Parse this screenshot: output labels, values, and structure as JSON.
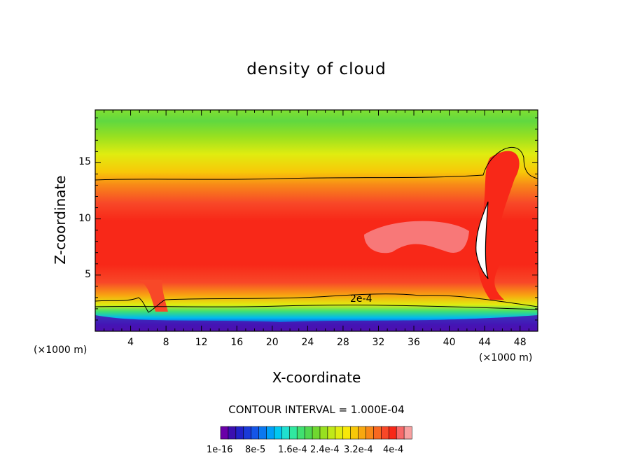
{
  "chart_data": {
    "type": "heatmap",
    "title": "density of cloud",
    "xlabel": "X-coordinate",
    "ylabel": "Z-coordinate",
    "x_unit": "(×1000 m)",
    "xlim": [
      0,
      50
    ],
    "ylim": [
      0,
      19.7
    ],
    "x_ticks": [
      "4",
      "8",
      "12",
      "16",
      "20",
      "24",
      "28",
      "32",
      "36",
      "40",
      "44",
      "48"
    ],
    "y_ticks": [
      "5",
      "10",
      "15"
    ],
    "contour_interval_label": "CONTOUR INTERVAL = 1.000E-04",
    "contour_label": "2e-4",
    "colorbar": {
      "labels": [
        "1e-16",
        "8e-5",
        "1.6e-4",
        "2.4e-4",
        "3.2e-4",
        "4e-4"
      ],
      "min": 0,
      "max": 0.0004,
      "colors": [
        "#6a00a8",
        "#3b0fb0",
        "#2222c8",
        "#1a3ad8",
        "#1455e8",
        "#0a78f0",
        "#00a0f8",
        "#00c8f0",
        "#20e0d0",
        "#30e8a0",
        "#40e070",
        "#50d850",
        "#70d830",
        "#98e020",
        "#c0e818",
        "#e0ec10",
        "#f8e808",
        "#f8c808",
        "#f8a810",
        "#f88818",
        "#f86820",
        "#f84828",
        "#f82818",
        "#f86868",
        "#f8a0a0"
      ]
    }
  }
}
